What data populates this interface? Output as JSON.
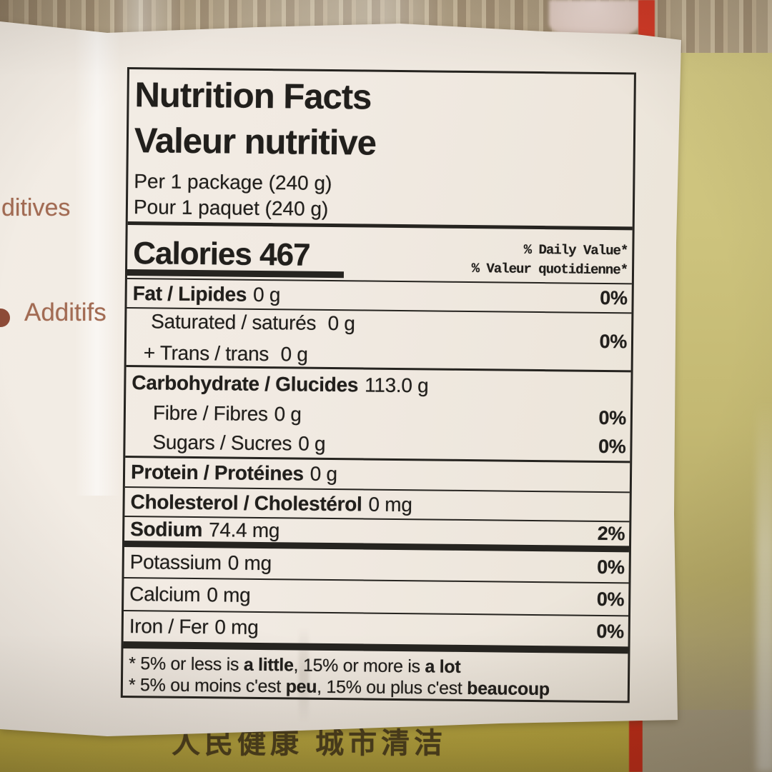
{
  "package": {
    "chinese_text": "人民健康 城市清洁",
    "left_fragment_1": "ditives",
    "left_fragment_2": "Additifs",
    "colors": {
      "paper": "#f1eae2",
      "ink": "#211f1c",
      "package_yellow": "#cdc37d",
      "package_yellow_deep": "#b3a13d",
      "red_stripe": "#c12c18",
      "fragment_text": "#a26b53",
      "noodles": "#b0a085"
    }
  },
  "label": {
    "title_en": "Nutrition Facts",
    "title_fr": "Valeur nutritive",
    "serving_en": "Per 1 package (240 g)",
    "serving_fr": "Pour 1 paquet (240 g)",
    "calories": "Calories 467",
    "dv_header_en": "% Daily Value*",
    "dv_header_fr": "% Valeur quotidienne*",
    "rows": {
      "fat": {
        "name": "Fat / Lipides",
        "value": "0 g",
        "dv": "0%"
      },
      "saturated": {
        "name": "Saturated / saturés",
        "value": "0 g",
        "dv": "0%"
      },
      "trans": {
        "name": "+ Trans / trans",
        "value": "0 g"
      },
      "carbohydrate": {
        "name": "Carbohydrate / Glucides",
        "value": "113.0 g"
      },
      "fibre": {
        "name": "Fibre / Fibres",
        "value": "0 g",
        "dv": "0%"
      },
      "sugars": {
        "name": "Sugars / Sucres",
        "value": "0 g",
        "dv": "0%"
      },
      "protein": {
        "name": "Protein / Protéines",
        "value": "0 g"
      },
      "cholesterol": {
        "name": "Cholesterol / Cholestérol",
        "value": "0 mg"
      },
      "sodium": {
        "name": "Sodium",
        "value": "74.4 mg",
        "dv": "2%"
      },
      "potassium": {
        "name": "Potassium",
        "value": "0 mg",
        "dv": "0%"
      },
      "calcium": {
        "name": "Calcium",
        "value": "0 mg",
        "dv": "0%"
      },
      "iron": {
        "name": "Iron / Fer",
        "value": "0 mg",
        "dv": "0%"
      }
    },
    "footnote_en": {
      "pre": "* 5% or less is ",
      "bold1": "a little",
      "mid": ", 15% or more is ",
      "bold2": "a lot"
    },
    "footnote_fr": {
      "pre": "* 5% ou moins c'est ",
      "bold1": "peu",
      "mid": ", 15% ou plus c'est ",
      "bold2": "beaucoup"
    }
  }
}
